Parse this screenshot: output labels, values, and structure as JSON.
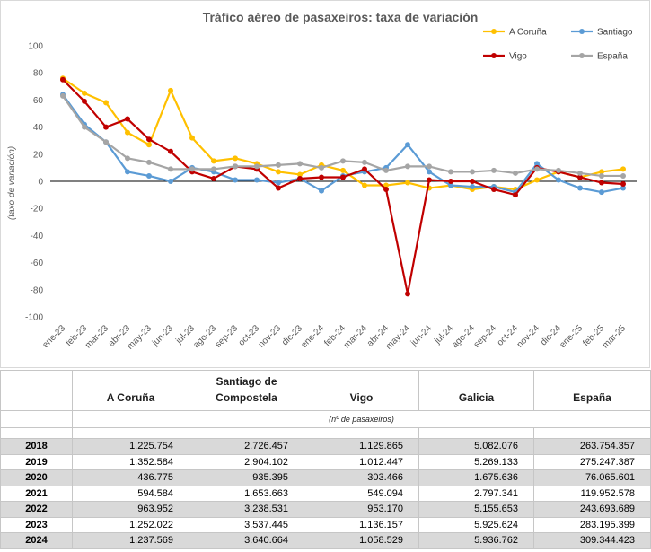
{
  "chart_data": {
    "type": "line",
    "title": "Tráfico aéreo de pasaxeiros: taxa de variación",
    "xlabel": "",
    "ylabel": "(taxo de variación)",
    "ylim": [
      -100,
      100
    ],
    "yticks": [
      100,
      80,
      60,
      40,
      20,
      0,
      -20,
      -40,
      -60,
      -80,
      -100
    ],
    "grid": false,
    "legend_position": "top-right",
    "categories": [
      "ene-23",
      "feb-23",
      "mar-23",
      "abr-23",
      "may-23",
      "jun-23",
      "jul-23",
      "ago-23",
      "sep-23",
      "oct-23",
      "nov-23",
      "dic-23",
      "ene-24",
      "feb-24",
      "mar-24",
      "abr-24",
      "may-24",
      "jun-24",
      "jul-24",
      "ago-24",
      "sep-24",
      "oct-24",
      "nov-24",
      "dic-24",
      "ene-25",
      "feb-25",
      "mar-25"
    ],
    "series": [
      {
        "name": "A Coruña",
        "color": "#FFC000",
        "values": [
          76,
          65,
          58,
          36,
          27,
          67,
          32,
          15,
          17,
          13,
          7,
          5,
          12,
          8,
          -3,
          -3,
          -1,
          -5,
          -3,
          -6,
          -4,
          -6,
          1,
          7,
          3,
          7,
          9
        ]
      },
      {
        "name": "Santiago",
        "color": "#5B9BD5",
        "values": [
          64,
          42,
          29,
          7,
          4,
          0,
          10,
          7,
          1,
          1,
          -1,
          2,
          -7,
          4,
          7,
          10,
          27,
          7,
          -3,
          -4,
          -4,
          -8,
          13,
          1,
          -5,
          -8,
          -5
        ]
      },
      {
        "name": "Vigo",
        "color": "#C00000",
        "values": [
          75,
          59,
          40,
          46,
          31,
          22,
          7,
          2,
          11,
          9,
          -5,
          2,
          3,
          3,
          9,
          -6,
          -83,
          1,
          0,
          0,
          -6,
          -10,
          10,
          7,
          3,
          -1,
          -2
        ]
      },
      {
        "name": "España",
        "color": "#A5A5A5",
        "values": [
          63,
          40,
          29,
          17,
          14,
          9,
          9,
          9,
          11,
          11,
          12,
          13,
          10,
          15,
          14,
          8,
          11,
          11,
          7,
          7,
          8,
          6,
          9,
          8,
          6,
          4,
          4
        ]
      }
    ]
  },
  "table": {
    "headers": [
      "A Coruña",
      "Santiago de Compostela",
      "Vigo",
      "Galicia",
      "España"
    ],
    "units": "(nº de pasaxeiros)",
    "rows": [
      {
        "year": "2018",
        "values": [
          "1.225.754",
          "2.726.457",
          "1.129.865",
          "5.082.076",
          "263.754.357"
        ]
      },
      {
        "year": "2019",
        "values": [
          "1.352.584",
          "2.904.102",
          "1.012.447",
          "5.269.133",
          "275.247.387"
        ]
      },
      {
        "year": "2020",
        "values": [
          "436.775",
          "935.395",
          "303.466",
          "1.675.636",
          "76.065.601"
        ]
      },
      {
        "year": "2021",
        "values": [
          "594.584",
          "1.653.663",
          "549.094",
          "2.797.341",
          "119.952.578"
        ]
      },
      {
        "year": "2022",
        "values": [
          "963.952",
          "3.238.531",
          "953.170",
          "5.155.653",
          "243.693.689"
        ]
      },
      {
        "year": "2023",
        "values": [
          "1.252.022",
          "3.537.445",
          "1.136.157",
          "5.925.624",
          "283.195.399"
        ]
      },
      {
        "year": "2024",
        "values": [
          "1.237.569",
          "3.640.664",
          "1.058.529",
          "5.936.762",
          "309.344.423"
        ]
      }
    ]
  }
}
